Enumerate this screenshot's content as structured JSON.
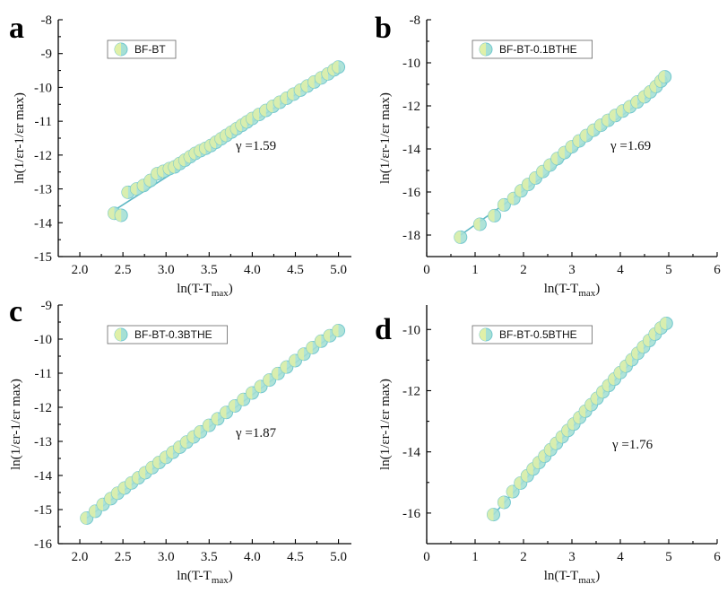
{
  "colors": {
    "marker_fill": "#a6e0d4",
    "marker_edge": "#72c7cf",
    "marker_inner": "#e0f0a8",
    "fit_line": "#5fb8c4"
  },
  "chart_data": [
    {
      "type": "scatter",
      "panel_label": "a",
      "legend": "BF-BT",
      "annotation": "γ =1.59",
      "xlabel_main": "ln(T-T",
      "xlabel_sub": "max",
      "xlabel_end": ")",
      "ylabel": "ln(1/εr-1/εr max)",
      "xlim": [
        1.75,
        5.15
      ],
      "ylim": [
        -15,
        -8
      ],
      "xticks": [
        2.0,
        2.5,
        3.0,
        3.5,
        4.0,
        4.5,
        5.0
      ],
      "xtick_labels": [
        "2.0",
        "2.5",
        "3.0",
        "3.5",
        "4.0",
        "4.5",
        "5.0"
      ],
      "yticks": [
        -15,
        -14,
        -13,
        -12,
        -11,
        -10,
        -9,
        -8
      ],
      "ytick_labels": [
        "-15",
        "-14",
        "-13",
        "-12",
        "-11",
        "-10",
        "-9",
        "-8"
      ],
      "fit": {
        "x": [
          2.42,
          5.0
        ],
        "y": [
          -13.6,
          -9.4
        ]
      },
      "x": [
        2.4,
        2.48,
        2.56,
        2.66,
        2.74,
        2.82,
        2.9,
        2.97,
        3.04,
        3.1,
        3.16,
        3.22,
        3.28,
        3.34,
        3.4,
        3.46,
        3.52,
        3.58,
        3.64,
        3.7,
        3.76,
        3.82,
        3.88,
        3.94,
        4.0,
        4.08,
        4.16,
        4.24,
        4.32,
        4.4,
        4.48,
        4.56,
        4.64,
        4.72,
        4.8,
        4.88,
        4.95,
        5.0
      ],
      "y": [
        -13.72,
        -13.78,
        -13.1,
        -13.0,
        -12.9,
        -12.75,
        -12.55,
        -12.48,
        -12.4,
        -12.35,
        -12.25,
        -12.15,
        -12.05,
        -11.95,
        -11.87,
        -11.8,
        -11.72,
        -11.62,
        -11.52,
        -11.42,
        -11.32,
        -11.22,
        -11.12,
        -11.02,
        -10.92,
        -10.8,
        -10.68,
        -10.56,
        -10.44,
        -10.32,
        -10.2,
        -10.08,
        -9.96,
        -9.84,
        -9.72,
        -9.6,
        -9.48,
        -9.4
      ]
    },
    {
      "type": "scatter",
      "panel_label": "b",
      "legend": "BF-BT-0.1BTHE",
      "annotation": "γ =1.69",
      "xlabel_main": "ln(T-T",
      "xlabel_sub": "max",
      "xlabel_end": ")",
      "ylabel": "ln(1/εr-1/εr max)",
      "xlim": [
        0,
        6
      ],
      "ylim": [
        -19,
        -8
      ],
      "xticks": [
        0,
        1,
        2,
        3,
        4,
        5,
        6
      ],
      "xtick_labels": [
        "0",
        "1",
        "2",
        "3",
        "4",
        "5",
        "6"
      ],
      "yticks": [
        -18,
        -16,
        -14,
        -12,
        -10,
        -8
      ],
      "ytick_labels": [
        "-18",
        "-16",
        "-14",
        "-12",
        "-10",
        "-8"
      ],
      "fit": {
        "x": [
          0.7,
          2.4,
          3.2,
          4.0,
          4.5,
          4.9
        ],
        "y": [
          -18.0,
          -15.3,
          -13.8,
          -12.5,
          -11.7,
          -10.7
        ]
      },
      "x": [
        0.7,
        1.1,
        1.4,
        1.6,
        1.8,
        1.95,
        2.1,
        2.25,
        2.4,
        2.55,
        2.7,
        2.85,
        3.0,
        3.15,
        3.3,
        3.45,
        3.6,
        3.75,
        3.9,
        4.05,
        4.2,
        4.35,
        4.5,
        4.62,
        4.74,
        4.84,
        4.92
      ],
      "y": [
        -18.1,
        -17.5,
        -17.1,
        -16.6,
        -16.3,
        -15.95,
        -15.65,
        -15.35,
        -15.05,
        -14.75,
        -14.45,
        -14.17,
        -13.9,
        -13.63,
        -13.38,
        -13.13,
        -12.9,
        -12.67,
        -12.45,
        -12.24,
        -12.04,
        -11.82,
        -11.58,
        -11.35,
        -11.1,
        -10.85,
        -10.65
      ]
    },
    {
      "type": "scatter",
      "panel_label": "c",
      "legend": "BF-BT-0.3BTHE",
      "annotation": "γ =1.87",
      "xlabel_main": "ln(T-T",
      "xlabel_sub": "max",
      "xlabel_end": ")",
      "ylabel": "ln(1/εr-1/εr max)",
      "xlim": [
        1.75,
        5.15
      ],
      "ylim": [
        -16,
        -9
      ],
      "xticks": [
        2.0,
        2.5,
        3.0,
        3.5,
        4.0,
        4.5,
        5.0
      ],
      "xtick_labels": [
        "2.0",
        "2.5",
        "3.0",
        "3.5",
        "4.0",
        "4.5",
        "5.0"
      ],
      "yticks": [
        -16,
        -15,
        -14,
        -13,
        -12,
        -11,
        -10,
        -9
      ],
      "ytick_labels": [
        "-16",
        "-15",
        "-14",
        "-13",
        "-12",
        "-11",
        "-10",
        "-9"
      ],
      "fit": {
        "x": [
          2.08,
          5.0
        ],
        "y": [
          -15.25,
          -9.75
        ]
      },
      "x": [
        2.08,
        2.18,
        2.27,
        2.36,
        2.44,
        2.52,
        2.6,
        2.68,
        2.76,
        2.84,
        2.92,
        3.0,
        3.08,
        3.16,
        3.24,
        3.32,
        3.4,
        3.5,
        3.6,
        3.7,
        3.8,
        3.9,
        4.0,
        4.1,
        4.2,
        4.3,
        4.4,
        4.5,
        4.6,
        4.7,
        4.8,
        4.9,
        5.0
      ],
      "y": [
        -15.25,
        -15.05,
        -14.85,
        -14.68,
        -14.52,
        -14.37,
        -14.22,
        -14.07,
        -13.92,
        -13.77,
        -13.62,
        -13.47,
        -13.32,
        -13.17,
        -13.02,
        -12.87,
        -12.72,
        -12.53,
        -12.34,
        -12.15,
        -11.96,
        -11.77,
        -11.58,
        -11.39,
        -11.2,
        -11.01,
        -10.82,
        -10.63,
        -10.44,
        -10.25,
        -10.06,
        -9.9,
        -9.75
      ]
    },
    {
      "type": "scatter",
      "panel_label": "d",
      "legend": "BF-BT-0.5BTHE",
      "annotation": "γ =1.76",
      "xlabel_main": "ln(T-T",
      "xlabel_sub": "max",
      "xlabel_end": ")",
      "ylabel": "ln(1/εr-1/εr max)",
      "xlim": [
        0,
        6
      ],
      "ylim": [
        -17,
        -9.2
      ],
      "xticks": [
        0,
        1,
        2,
        3,
        4,
        5,
        6
      ],
      "xtick_labels": [
        "0",
        "1",
        "2",
        "3",
        "4",
        "5",
        "6"
      ],
      "yticks": [
        -16,
        -14,
        -12,
        -10
      ],
      "ytick_labels": [
        "-16",
        "-14",
        "-12",
        "-10"
      ],
      "fit": {
        "x": [
          1.38,
          4.95
        ],
        "y": [
          -16.05,
          -9.8
        ]
      },
      "x": [
        1.38,
        1.6,
        1.78,
        1.94,
        2.08,
        2.2,
        2.32,
        2.44,
        2.56,
        2.68,
        2.8,
        2.92,
        3.04,
        3.16,
        3.28,
        3.4,
        3.52,
        3.64,
        3.76,
        3.88,
        4.0,
        4.12,
        4.24,
        4.36,
        4.48,
        4.6,
        4.72,
        4.84,
        4.95
      ],
      "y": [
        -16.05,
        -15.65,
        -15.3,
        -15.02,
        -14.78,
        -14.56,
        -14.35,
        -14.14,
        -13.93,
        -13.72,
        -13.51,
        -13.3,
        -13.09,
        -12.88,
        -12.67,
        -12.46,
        -12.25,
        -12.04,
        -11.83,
        -11.62,
        -11.41,
        -11.2,
        -10.99,
        -10.78,
        -10.57,
        -10.36,
        -10.15,
        -9.95,
        -9.8
      ]
    }
  ]
}
